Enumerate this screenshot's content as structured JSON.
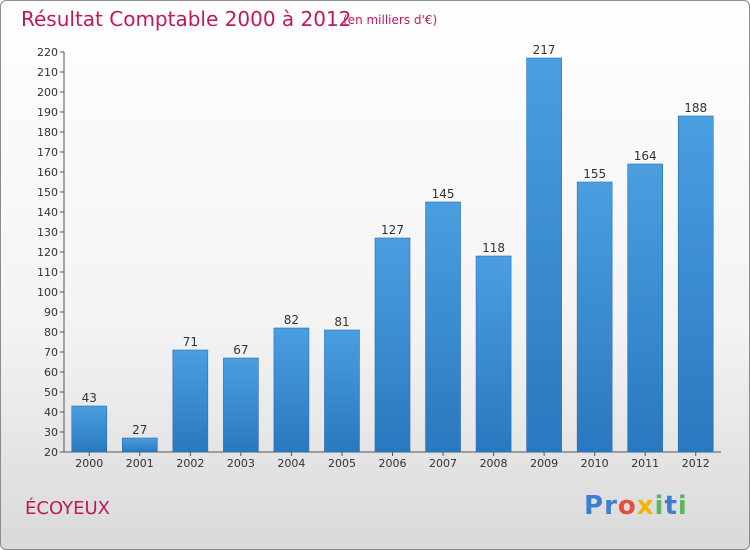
{
  "chart_data": {
    "type": "bar",
    "title": "Résultat Comptable 2000 à 2012",
    "subtitle": "(en milliers d'€)",
    "categories": [
      "2000",
      "2001",
      "2002",
      "2003",
      "2004",
      "2005",
      "2006",
      "2007",
      "2008",
      "2009",
      "2010",
      "2011",
      "2012"
    ],
    "values": [
      43,
      27,
      71,
      67,
      82,
      81,
      127,
      145,
      118,
      217,
      155,
      164,
      188
    ],
    "ylim": [
      20,
      220
    ],
    "ytick_step": 10,
    "xlabel": "",
    "ylabel": "",
    "grid": false,
    "bar_color": "#4a9fe0",
    "bar_color_dark": "#2a78bf"
  },
  "footer": {
    "commune": "ÉCOYEUX",
    "logo": [
      "P",
      "r",
      "o",
      "x",
      "i",
      "t",
      "i"
    ],
    "logo_colors": [
      "#3a7fd0",
      "#3a7fd0",
      "#e74c3c",
      "#f4b400",
      "#5cb85c",
      "#3a7fd0",
      "#5cb85c"
    ]
  },
  "colors": {
    "accent": "#c2185b"
  }
}
